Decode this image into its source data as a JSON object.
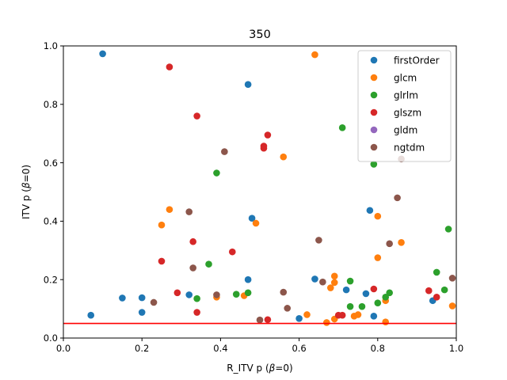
{
  "chart_data": {
    "type": "scatter",
    "title": "350",
    "xlabel": "R_ITV p (β=0)",
    "ylabel": "ITV p (β=0)",
    "xlim": [
      0,
      1
    ],
    "ylim": [
      0,
      1
    ],
    "xticks": [
      "0.0",
      "0.2",
      "0.4",
      "0.6",
      "0.8",
      "1.0"
    ],
    "yticks": [
      "0.0",
      "0.2",
      "0.4",
      "0.6",
      "0.8",
      "1.0"
    ],
    "grid": false,
    "legend_position": "top-right",
    "threshold_line": {
      "y": 0.05,
      "color": "#ff0000"
    },
    "series": [
      {
        "name": "firstOrder",
        "color": "#1f77b4",
        "points": [
          [
            0.07,
            0.078
          ],
          [
            0.1,
            0.973
          ],
          [
            0.15,
            0.137
          ],
          [
            0.2,
            0.138
          ],
          [
            0.2,
            0.088
          ],
          [
            0.32,
            0.148
          ],
          [
            0.47,
            0.868
          ],
          [
            0.47,
            0.2
          ],
          [
            0.48,
            0.41
          ],
          [
            0.6,
            0.067
          ],
          [
            0.64,
            0.202
          ],
          [
            0.72,
            0.165
          ],
          [
            0.77,
            0.152
          ],
          [
            0.78,
            0.437
          ],
          [
            0.79,
            0.075
          ],
          [
            0.94,
            0.128
          ]
        ]
      },
      {
        "name": "glcm",
        "color": "#ff7f0e",
        "points": [
          [
            0.25,
            0.387
          ],
          [
            0.27,
            0.44
          ],
          [
            0.39,
            0.14
          ],
          [
            0.46,
            0.145
          ],
          [
            0.49,
            0.393
          ],
          [
            0.56,
            0.62
          ],
          [
            0.62,
            0.08
          ],
          [
            0.64,
            0.97
          ],
          [
            0.67,
            0.053
          ],
          [
            0.68,
            0.172
          ],
          [
            0.69,
            0.19
          ],
          [
            0.69,
            0.212
          ],
          [
            0.69,
            0.065
          ],
          [
            0.74,
            0.075
          ],
          [
            0.75,
            0.08
          ],
          [
            0.8,
            0.417
          ],
          [
            0.8,
            0.275
          ],
          [
            0.82,
            0.128
          ],
          [
            0.82,
            0.055
          ],
          [
            0.86,
            0.327
          ],
          [
            0.99,
            0.11
          ]
        ]
      },
      {
        "name": "glrlm",
        "color": "#2ca02c",
        "points": [
          [
            0.34,
            0.135
          ],
          [
            0.37,
            0.253
          ],
          [
            0.39,
            0.565
          ],
          [
            0.44,
            0.15
          ],
          [
            0.47,
            0.155
          ],
          [
            0.71,
            0.72
          ],
          [
            0.73,
            0.108
          ],
          [
            0.73,
            0.195
          ],
          [
            0.76,
            0.108
          ],
          [
            0.79,
            0.595
          ],
          [
            0.8,
            0.12
          ],
          [
            0.82,
            0.14
          ],
          [
            0.83,
            0.155
          ],
          [
            0.95,
            0.225
          ],
          [
            0.97,
            0.165
          ],
          [
            0.98,
            0.373
          ]
        ]
      },
      {
        "name": "glszm",
        "color": "#d62728",
        "points": [
          [
            0.25,
            0.263
          ],
          [
            0.27,
            0.928
          ],
          [
            0.29,
            0.155
          ],
          [
            0.33,
            0.33
          ],
          [
            0.34,
            0.76
          ],
          [
            0.34,
            0.088
          ],
          [
            0.43,
            0.295
          ],
          [
            0.51,
            0.657
          ],
          [
            0.51,
            0.65
          ],
          [
            0.52,
            0.695
          ],
          [
            0.52,
            0.063
          ],
          [
            0.7,
            0.078
          ],
          [
            0.71,
            0.078
          ],
          [
            0.79,
            0.168
          ],
          [
            0.93,
            0.162
          ],
          [
            0.95,
            0.14
          ]
        ]
      },
      {
        "name": "gldm",
        "color": "#9467bd",
        "points": []
      },
      {
        "name": "ngtdm",
        "color": "#8c564b",
        "points": [
          [
            0.23,
            0.122
          ],
          [
            0.32,
            0.432
          ],
          [
            0.33,
            0.24
          ],
          [
            0.39,
            0.148
          ],
          [
            0.41,
            0.638
          ],
          [
            0.5,
            0.062
          ],
          [
            0.56,
            0.157
          ],
          [
            0.57,
            0.102
          ],
          [
            0.65,
            0.335
          ],
          [
            0.66,
            0.192
          ],
          [
            0.83,
            0.323
          ],
          [
            0.85,
            0.48
          ],
          [
            0.86,
            0.613
          ],
          [
            0.99,
            0.205
          ]
        ]
      }
    ]
  }
}
